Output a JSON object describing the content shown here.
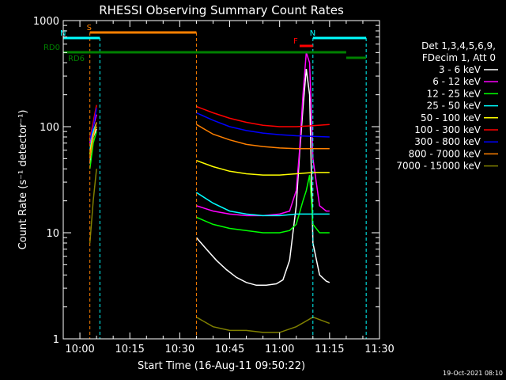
{
  "chart_data": {
    "type": "line",
    "title": "RHESSI Observing Summary Count Rates",
    "xlabel": "Start Time (16-Aug-11 09:50:22)",
    "ylabel": "Count Rate (s⁻¹ detector⁻¹)",
    "y_scale": "log",
    "ylim": [
      1,
      1000
    ],
    "xlim": [
      "09:55",
      "11:30"
    ],
    "x_ticks": [
      "10:00",
      "10:15",
      "10:30",
      "10:45",
      "11:00",
      "11:15",
      "11:30"
    ],
    "y_ticks": [
      "1",
      "10",
      "100",
      "1000"
    ],
    "timestamp": "19-Oct-2021 08:10",
    "legend": {
      "title_line1": "Det 1,3,4,5,6,9,",
      "title_line2": "FDecim 1, Att 0",
      "placement": "right"
    },
    "flags": [
      {
        "label": "S",
        "color": "#ff8000",
        "start": "10:03",
        "end": "10:35"
      },
      {
        "label": "N",
        "color": "#00ffff",
        "start": "09:55",
        "end": "10:06"
      },
      {
        "label": "N",
        "color": "#00ffff",
        "start": "11:10",
        "end": "11:26"
      },
      {
        "label": "RD0",
        "color": "#008000",
        "start": "09:55",
        "end": "11:20"
      },
      {
        "label": "RD6",
        "color": "#008000",
        "start": "11:20",
        "end": "11:26"
      },
      {
        "label": "F",
        "color": "#ff0000",
        "start": "11:06",
        "end": "11:10"
      }
    ],
    "series": [
      {
        "name": "3 - 6 keV",
        "color": "#ffffff",
        "segments": [
          {
            "x": [
              "10:03",
              "10:04",
              "10:05"
            ],
            "y": [
              45,
              80,
              95
            ]
          },
          {
            "x": [
              "10:35",
              "10:38",
              "10:41",
              "10:44",
              "10:47",
              "10:50",
              "10:53",
              "10:56",
              "10:59",
              "11:01",
              "11:03",
              "11:05",
              "11:06",
              "11:07",
              "11:08",
              "11:09",
              "11:10",
              "11:12",
              "11:14",
              "11:15"
            ],
            "y": [
              9,
              7,
              5.5,
              4.5,
              3.8,
              3.4,
              3.2,
              3.2,
              3.3,
              3.6,
              5.5,
              18,
              55,
              150,
              350,
              200,
              8,
              4,
              3.5,
              3.4
            ]
          }
        ]
      },
      {
        "name": "6 - 12 keV",
        "color": "#ff00ff",
        "segments": [
          {
            "x": [
              "10:03",
              "10:04",
              "10:05"
            ],
            "y": [
              70,
              100,
              130
            ]
          },
          {
            "x": [
              "10:35",
              "10:40",
              "10:45",
              "10:50",
              "10:55",
              "11:00",
              "11:03",
              "11:05",
              "11:06",
              "11:07",
              "11:08",
              "11:09",
              "11:10",
              "11:12",
              "11:14",
              "11:15"
            ],
            "y": [
              18,
              16,
              15,
              14.5,
              14.5,
              15,
              16,
              25,
              60,
              200,
              500,
              400,
              50,
              18,
              16,
              16
            ]
          }
        ]
      },
      {
        "name": "12 - 25 keV",
        "color": "#00ff00",
        "segments": [
          {
            "x": [
              "10:03",
              "10:04",
              "10:05"
            ],
            "y": [
              40,
              70,
              90
            ]
          },
          {
            "x": [
              "10:35",
              "10:40",
              "10:45",
              "10:50",
              "10:55",
              "11:00",
              "11:03",
              "11:05",
              "11:07",
              "11:08",
              "11:09",
              "11:10",
              "11:12",
              "11:15"
            ],
            "y": [
              14,
              12,
              11,
              10.5,
              10,
              10,
              10.5,
              12,
              20,
              25,
              35,
              12,
              10,
              10
            ]
          }
        ]
      },
      {
        "name": "25 - 50 keV",
        "color": "#00ffff",
        "segments": [
          {
            "x": [
              "10:03",
              "10:04",
              "10:05"
            ],
            "y": [
              60,
              90,
              110
            ]
          },
          {
            "x": [
              "10:35",
              "10:40",
              "10:45",
              "10:50",
              "10:55",
              "11:00",
              "11:05",
              "11:10",
              "11:15"
            ],
            "y": [
              24,
              19,
              16,
              15,
              14.5,
              14.5,
              15,
              15,
              15
            ]
          }
        ]
      },
      {
        "name": "50 - 100 keV",
        "color": "#ffff00",
        "segments": [
          {
            "x": [
              "10:03",
              "10:04",
              "10:05"
            ],
            "y": [
              55,
              85,
              100
            ]
          },
          {
            "x": [
              "10:35",
              "10:40",
              "10:45",
              "10:50",
              "10:55",
              "11:00",
              "11:05",
              "11:10",
              "11:15"
            ],
            "y": [
              48,
              42,
              38,
              36,
              35,
              35,
              36,
              37,
              37
            ]
          }
        ]
      },
      {
        "name": "100 - 300 keV",
        "color": "#ff0000",
        "segments": [
          {
            "x": [
              "10:03",
              "10:04",
              "10:05"
            ],
            "y": [
              78,
              110,
              160
            ]
          },
          {
            "x": [
              "10:35",
              "10:40",
              "10:45",
              "10:50",
              "10:55",
              "11:00",
              "11:05",
              "11:10",
              "11:15"
            ],
            "y": [
              155,
              135,
              120,
              110,
              103,
              100,
              100,
              102,
              105
            ]
          }
        ]
      },
      {
        "name": "300 - 800 keV",
        "color": "#0000ff",
        "segments": [
          {
            "x": [
              "10:03",
              "10:04",
              "10:05"
            ],
            "y": [
              75,
              100,
              150
            ]
          },
          {
            "x": [
              "10:35",
              "10:40",
              "10:45",
              "10:50",
              "10:55",
              "11:00",
              "11:05",
              "11:10",
              "11:15"
            ],
            "y": [
              135,
              115,
              100,
              92,
              87,
              84,
              82,
              81,
              80
            ]
          }
        ]
      },
      {
        "name": "800 - 7000 keV",
        "color": "#ff8000",
        "segments": [
          {
            "x": [
              "10:03",
              "10:04",
              "10:05"
            ],
            "y": [
              50,
              80,
              110
            ]
          },
          {
            "x": [
              "10:35",
              "10:40",
              "10:45",
              "10:50",
              "10:55",
              "11:00",
              "11:05",
              "11:10",
              "11:15"
            ],
            "y": [
              105,
              85,
              75,
              68,
              65,
              63,
              62,
              62,
              62
            ]
          }
        ]
      },
      {
        "name": "7000 - 15000 keV",
        "color": "#808000",
        "segments": [
          {
            "x": [
              "10:03",
              "10:04",
              "10:05"
            ],
            "y": [
              8,
              20,
              40
            ]
          },
          {
            "x": [
              "10:35",
              "10:40",
              "10:45",
              "10:50",
              "10:55",
              "11:00",
              "11:05",
              "11:10",
              "11:15"
            ],
            "y": [
              1.6,
              1.3,
              1.2,
              1.2,
              1.15,
              1.15,
              1.3,
              1.6,
              1.4
            ]
          }
        ]
      }
    ]
  }
}
